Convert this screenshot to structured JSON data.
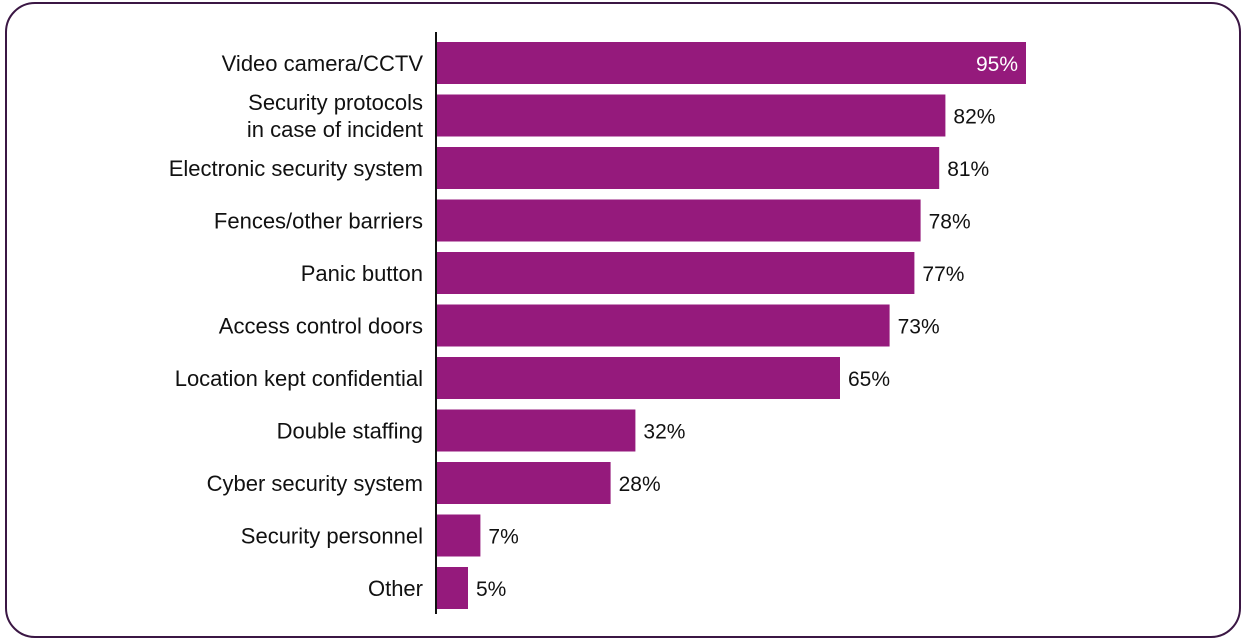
{
  "chart_data": {
    "type": "bar",
    "orientation": "horizontal",
    "categories": [
      [
        "Video camera/CCTV"
      ],
      [
        "Security protocols",
        "in case of incident"
      ],
      [
        "Electronic security system"
      ],
      [
        "Fences/other barriers"
      ],
      [
        "Panic button"
      ],
      [
        "Access control doors"
      ],
      [
        "Location kept confidential"
      ],
      [
        "Double staffing"
      ],
      [
        "Cyber security system"
      ],
      [
        "Security personnel"
      ],
      [
        "Other"
      ]
    ],
    "values": [
      95,
      82,
      81,
      78,
      77,
      73,
      65,
      32,
      28,
      7,
      5
    ],
    "value_labels": [
      "95%",
      "82%",
      "81%",
      "78%",
      "77%",
      "73%",
      "65%",
      "32%",
      "28%",
      "7%",
      "5%"
    ],
    "xlim": [
      0,
      100
    ],
    "grid": false,
    "legend": "none",
    "bar_color": "#951a7c",
    "frame_color": "#3b1744"
  }
}
